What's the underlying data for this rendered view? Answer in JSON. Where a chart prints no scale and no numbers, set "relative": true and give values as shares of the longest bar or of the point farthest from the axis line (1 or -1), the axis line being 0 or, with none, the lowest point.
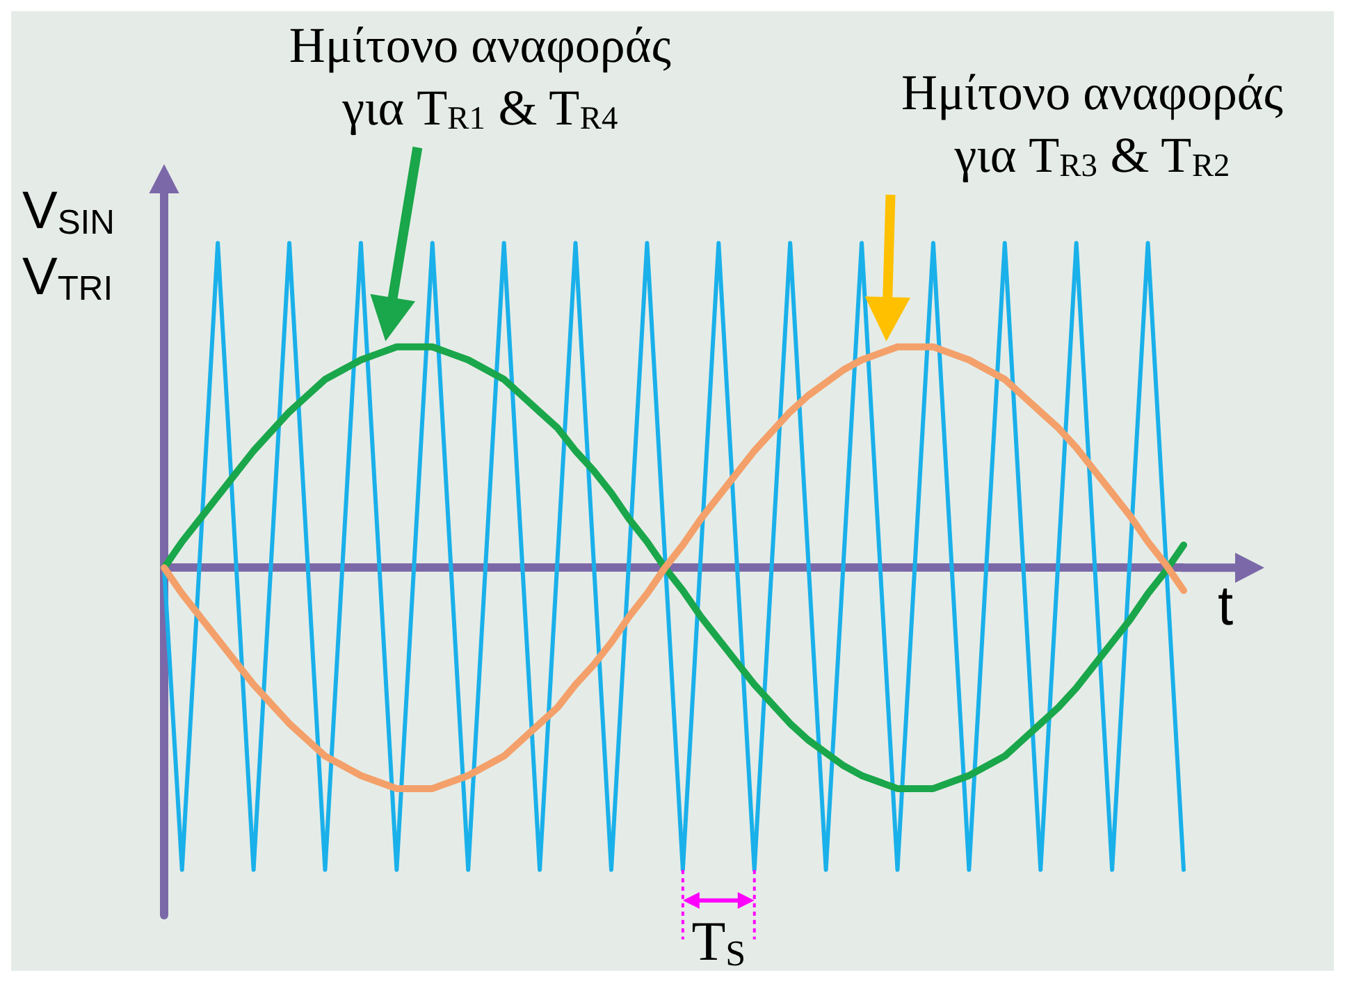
{
  "chart_data": {
    "type": "line",
    "relative": true,
    "xlabel": "t",
    "ylabel": "V$_{SIN}$\nV$_{TRI}$",
    "marker": "none",
    "line_style": "solid",
    "ref_lines": [
      {
        "axis": "y",
        "value": 0,
        "color": "#7b68a8"
      }
    ],
    "categories": [
      null,
      null,
      null,
      null,
      null,
      null,
      null,
      null,
      null,
      null,
      null,
      null,
      null,
      null,
      null,
      null,
      null,
      null,
      null,
      null,
      null,
      null,
      null,
      null,
      null,
      null,
      null,
      null,
      null,
      null,
      null,
      null,
      null,
      null,
      null,
      null,
      null,
      null,
      null,
      null,
      null,
      null,
      null,
      null,
      null,
      null,
      null,
      null,
      null,
      null,
      null,
      null,
      null,
      null,
      null,
      null,
      null,
      null
    ],
    "series": [
      {
        "color": "#1aa64a",
        "values": [
          0,
          0.08,
          0.15,
          0.22,
          0.29,
          0.36,
          0.42,
          0.48,
          0.53,
          0.58,
          0.61,
          0.64,
          0.66,
          0.68,
          0.68,
          0.68,
          0.66,
          0.64,
          0.61,
          0.58,
          0.53,
          0.48,
          0.43,
          0.36,
          0.3,
          0.23,
          0.15,
          0.08,
          0,
          -0.07,
          -0.15,
          -0.22,
          -0.29,
          -0.36,
          -0.42,
          -0.48,
          -0.53,
          -0.57,
          -0.61,
          -0.64,
          -0.66,
          -0.68,
          -0.68,
          -0.68,
          -0.66,
          -0.64,
          -0.61,
          -0.58,
          -0.53,
          -0.48,
          -0.43,
          -0.37,
          -0.3,
          -0.23,
          -0.16,
          -0.08,
          -0.01,
          0.07
        ]
      },
      {
        "color": "#f4a06a",
        "values": [
          0,
          -0.08,
          -0.15,
          -0.22,
          -0.29,
          -0.36,
          -0.42,
          -0.48,
          -0.53,
          -0.58,
          -0.61,
          -0.64,
          -0.66,
          -0.68,
          -0.68,
          -0.68,
          -0.66,
          -0.64,
          -0.61,
          -0.58,
          -0.53,
          -0.48,
          -0.43,
          -0.36,
          -0.3,
          -0.23,
          -0.15,
          -0.08,
          0,
          0.07,
          0.15,
          0.22,
          0.29,
          0.36,
          0.42,
          0.48,
          0.53,
          0.57,
          0.61,
          0.64,
          0.66,
          0.68,
          0.68,
          0.68,
          0.66,
          0.64,
          0.61,
          0.58,
          0.53,
          0.48,
          0.43,
          0.37,
          0.3,
          0.23,
          0.16,
          0.08,
          0.01,
          -0.07
        ]
      },
      {
        "color": "#1ab0ea",
        "values": [
          0,
          -0.93,
          null,
          1,
          null,
          -0.93,
          null,
          1,
          null,
          -0.93,
          null,
          1,
          null,
          -0.93,
          null,
          1,
          null,
          -0.93,
          null,
          1,
          null,
          -0.93,
          null,
          1,
          null,
          -0.93,
          null,
          1,
          null,
          -0.93,
          null,
          1,
          null,
          -0.93,
          null,
          1,
          null,
          -0.93,
          null,
          1,
          null,
          -0.93,
          null,
          1,
          null,
          -0.93,
          null,
          1,
          null,
          -0.93,
          null,
          1,
          null,
          -0.93,
          null,
          1,
          null,
          -0.93
        ]
      }
    ],
    "annotations": [
      "Ημίτονο αναφοράς\nγια T$_{R1}$ & T$_{R4}$",
      "Ημίτονο αναφοράς\nγια T$_{R3}$ & T$_{R2}$",
      "T$_{S}$"
    ]
  }
}
